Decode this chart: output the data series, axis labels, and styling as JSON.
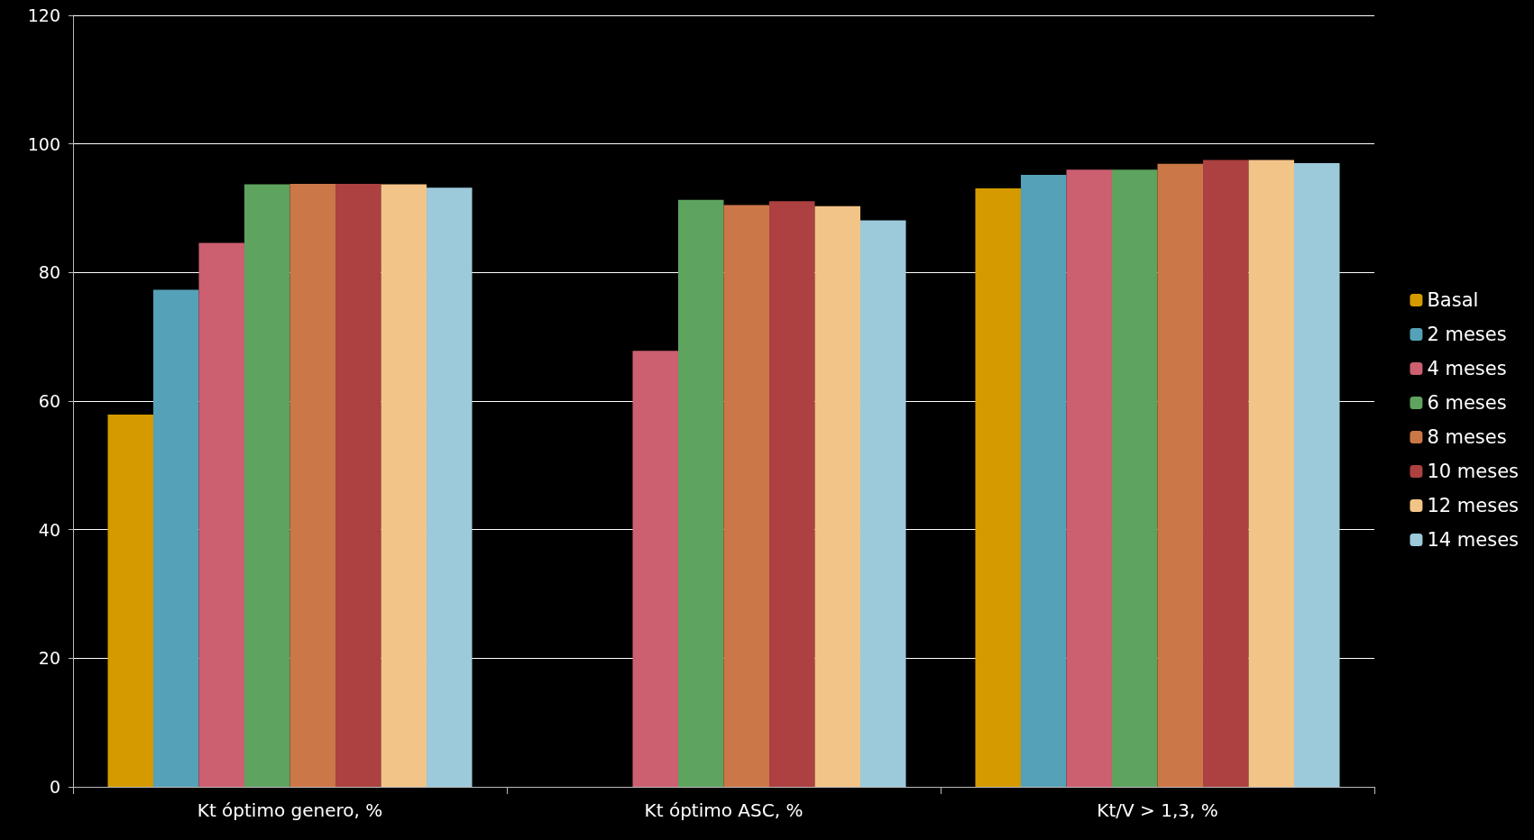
{
  "chart_data": {
    "type": "bar",
    "categories": [
      "Kt óptimo genero, %",
      "Kt óptimo ASC, %",
      "Kt/V > 1,3, %"
    ],
    "series": [
      {
        "name": "Basal",
        "color": "#d49a00",
        "values": [
          57.9,
          null,
          93.1
        ]
      },
      {
        "name": "2 meses",
        "color": "#55a1b8",
        "values": [
          77.3,
          null,
          95.2
        ]
      },
      {
        "name": "4 meses",
        "color": "#cc5f70",
        "values": [
          84.6,
          67.8,
          96.0
        ]
      },
      {
        "name": "6 meses",
        "color": "#5ea35e",
        "values": [
          93.7,
          91.3,
          96.0
        ]
      },
      {
        "name": "8 meses",
        "color": "#cc7748",
        "values": [
          93.8,
          90.5,
          96.9
        ]
      },
      {
        "name": "10 meses",
        "color": "#ad4040",
        "values": [
          93.8,
          91.1,
          97.5
        ]
      },
      {
        "name": "12 meses",
        "color": "#f3c487",
        "values": [
          93.7,
          90.3,
          97.5
        ]
      },
      {
        "name": "14 meses",
        "color": "#9ccadb",
        "values": [
          93.2,
          88.1,
          97.0
        ]
      }
    ],
    "ylim": [
      0,
      120
    ],
    "yticks": [
      0,
      20,
      40,
      60,
      80,
      100,
      120
    ],
    "grid": "y",
    "legend": "right"
  }
}
